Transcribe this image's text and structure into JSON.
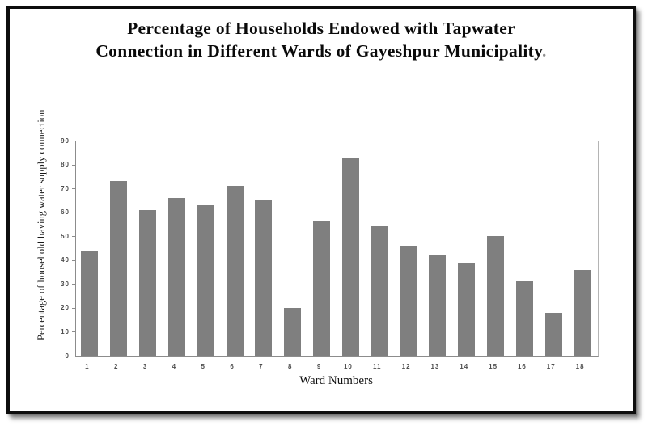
{
  "figure": {
    "title_line1": "Percentage of Households Endowed with Tapwater",
    "title_line2": "Connection in Different Wards of Gayeshpur Municipality",
    "title_trailing_mark": "."
  },
  "chart_data": {
    "type": "bar",
    "title": "Percentage of Households Endowed with Tapwater Connection in Different Wards of Gayeshpur Municipality",
    "categories": [
      "1",
      "2",
      "3",
      "4",
      "5",
      "6",
      "7",
      "8",
      "9",
      "10",
      "11",
      "12",
      "13",
      "14",
      "15",
      "16",
      "17",
      "18"
    ],
    "values": [
      44,
      73,
      61,
      66,
      63,
      71,
      65,
      20,
      56,
      83,
      54,
      46,
      42,
      39,
      50,
      31,
      18,
      36
    ],
    "xlabel": "Ward Numbers",
    "ylabel": "Percentage of household having water supply connection",
    "ylim": [
      0,
      90
    ],
    "ytick_step": 10,
    "yticks": [
      "0",
      "10",
      "20",
      "30",
      "40",
      "50",
      "60",
      "70",
      "80",
      "90"
    ],
    "grid": "off",
    "legend": "none",
    "bar_color": "#7f7f7f",
    "background_color": "#ffffff"
  }
}
